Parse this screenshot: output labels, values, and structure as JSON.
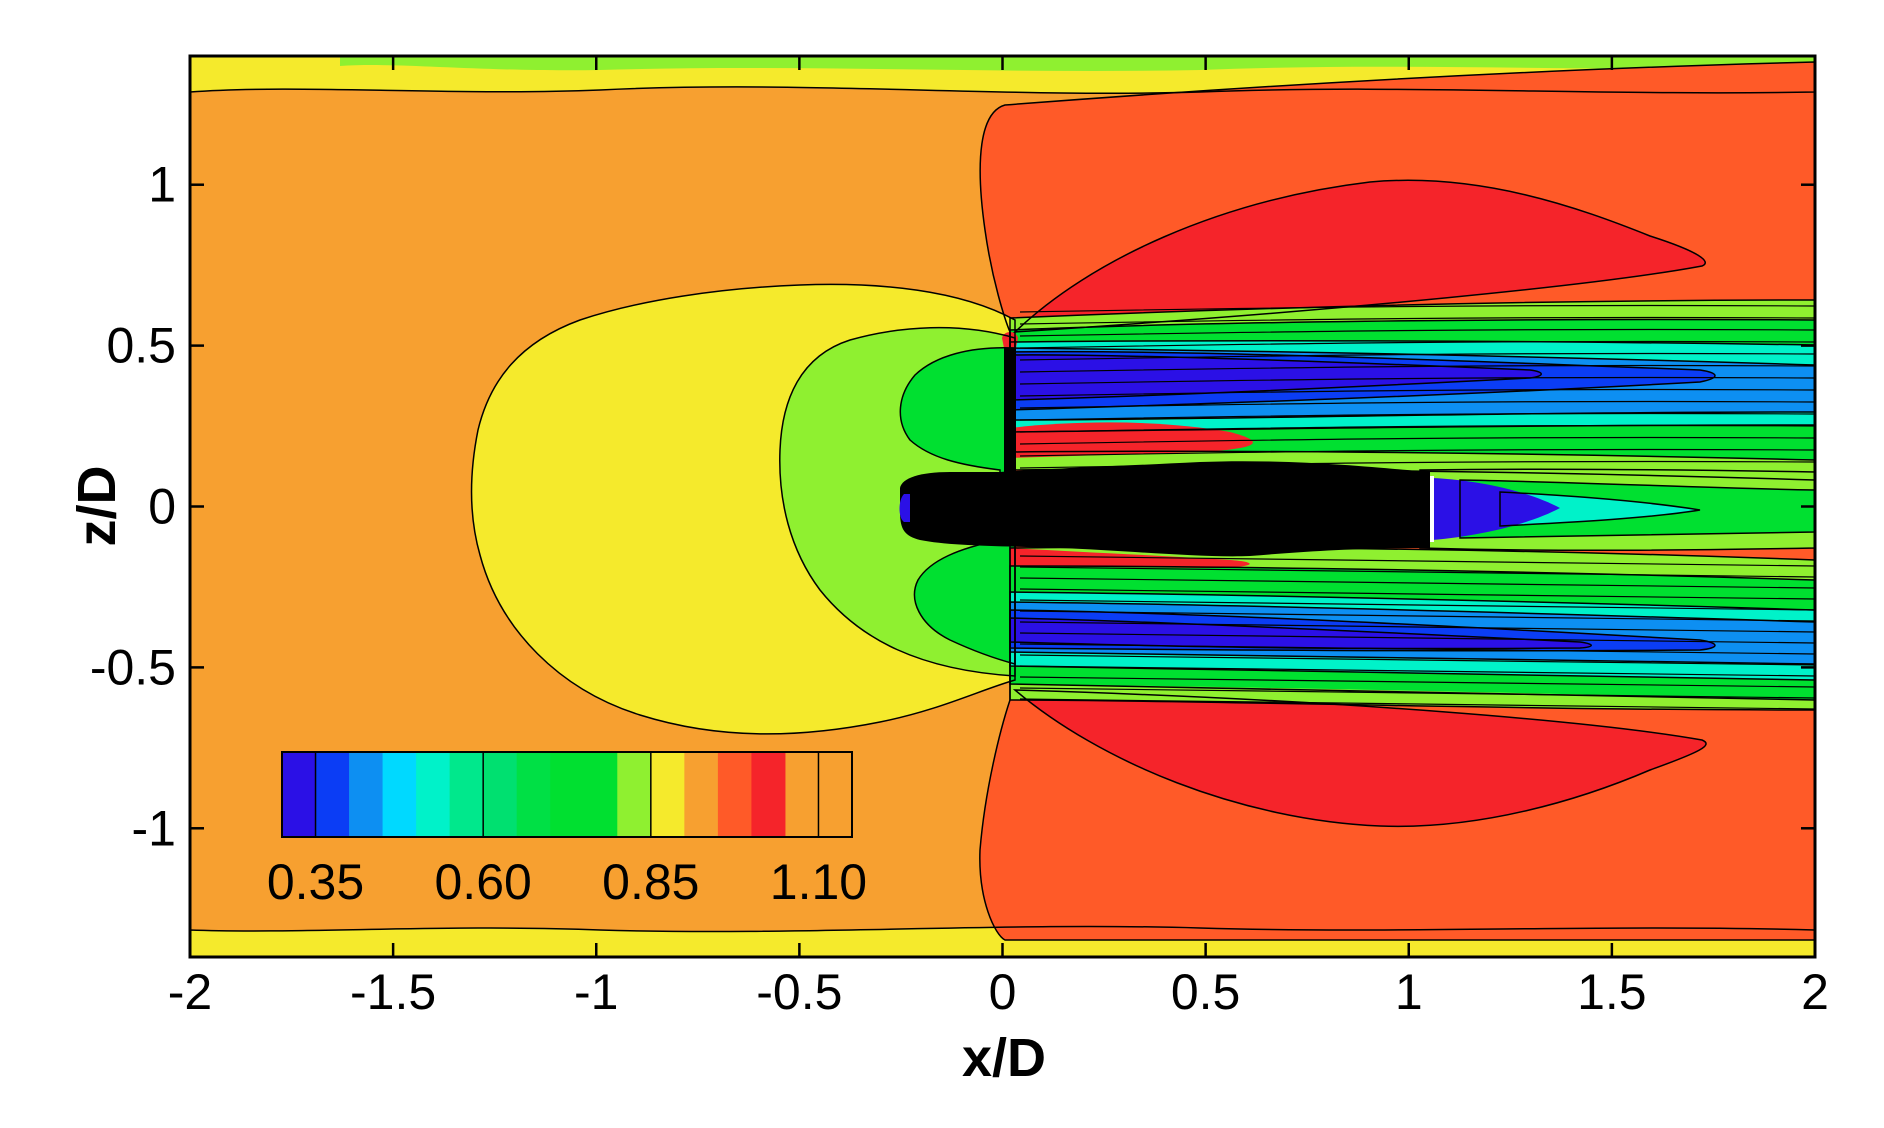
{
  "chart_data": {
    "type": "heatmap",
    "subtype": "filled-contour",
    "title": "",
    "xlabel": "x/D",
    "ylabel": "z/D",
    "xlim": [
      -2,
      2
    ],
    "ylim": [
      -1.4,
      1.4
    ],
    "x_ticks": [
      -2,
      -1.5,
      -1,
      -0.5,
      0,
      0.5,
      1,
      1.5,
      2
    ],
    "x_tick_labels": [
      "-2",
      "-1.5",
      "-1",
      "-0.5",
      "0",
      "0.5",
      "1",
      "1.5",
      "2"
    ],
    "y_ticks": [
      1,
      0.5,
      0,
      -0.5,
      -1
    ],
    "y_tick_labels": [
      "1",
      "0.5",
      "0",
      "-0.5",
      "-1"
    ],
    "grid": false,
    "legend_placement": "bottom-left inside plot",
    "colorbar": {
      "levels": [
        0.3,
        0.35,
        0.4,
        0.45,
        0.5,
        0.55,
        0.6,
        0.65,
        0.7,
        0.75,
        0.8,
        0.85,
        0.9,
        0.95,
        1.0,
        1.05,
        1.1,
        1.15
      ],
      "colors": [
        "#2b10e6",
        "#0b3df5",
        "#0d8ff2",
        "#00d9ff",
        "#00f2c9",
        "#00e88c",
        "#00e070",
        "#00e045",
        "#00e030",
        "#00e030",
        "#8ff030",
        "#f5ea2c",
        "#f7a030",
        "#ff5a28",
        "#f5242a"
      ],
      "colors_note": "",
      "tick_values": [
        0.35,
        0.6,
        0.85,
        1.1
      ],
      "tick_labels": [
        "0.35",
        "0.60",
        "0.85",
        "1.10"
      ]
    },
    "field_colors": {
      "background": "#f7a030",
      "high": "#ff5a28",
      "peak": "#f5242a",
      "yellow": "#f5ea2c",
      "lightgreen": "#8ff030",
      "green": "#00e030",
      "cyan": "#00f2c9",
      "lightblue": "#0d8ff2",
      "blue": "#0b3df5",
      "deepblue": "#2b10e6",
      "body": "#000000"
    }
  }
}
